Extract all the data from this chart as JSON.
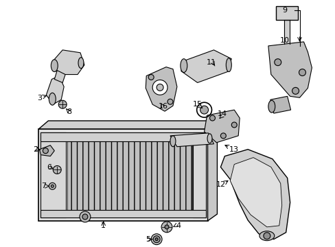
{
  "bg_color": "#ffffff",
  "line_color": "#000000",
  "part_fill": "#cccccc",
  "part_dark": "#aaaaaa",
  "figsize": [
    4.89,
    3.6
  ],
  "dpi": 100
}
